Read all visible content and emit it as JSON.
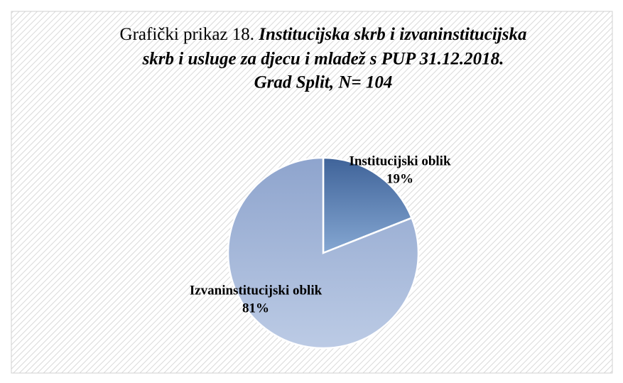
{
  "chart_data": {
    "type": "pie",
    "title": {
      "prefix": "Grafički prikaz 18.",
      "lines": [
        "Institucijska skrb i izvaninstitucijska",
        "skrb i usluge za djecu i mladež s PUP 31.12.2018.",
        "Grad Split, N= 104"
      ]
    },
    "categories": [
      "Institucijski oblik",
      "Izvaninstitucijski oblik"
    ],
    "values": [
      19,
      81
    ],
    "value_labels": [
      "19%",
      "81%"
    ],
    "colors": [
      [
        "#3f6399",
        "#85a7d2"
      ],
      [
        "#8ea4cd",
        "#bccbe5"
      ]
    ]
  }
}
